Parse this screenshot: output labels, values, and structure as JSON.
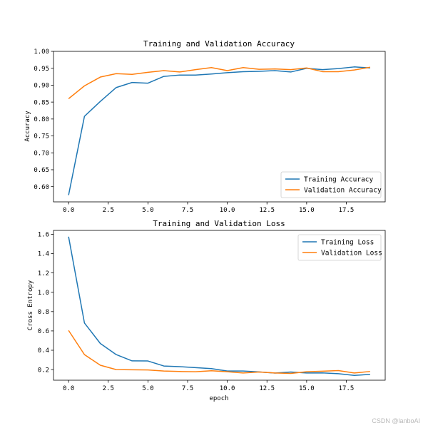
{
  "watermark": "CSDN @lanboAI",
  "colors": {
    "training": "#1f77b4",
    "validation": "#ff7f0e"
  },
  "chart_data": [
    {
      "type": "line",
      "title": "Training and Validation Accuracy",
      "xlabel": "",
      "ylabel": "Accuracy",
      "x": [
        0,
        1,
        2,
        3,
        4,
        5,
        6,
        7,
        8,
        9,
        10,
        11,
        12,
        13,
        14,
        15,
        16,
        17,
        18,
        19
      ],
      "xlim": [
        -0.95,
        19.95
      ],
      "ylim": [
        0.555,
        1.0
      ],
      "xticks": [
        0.0,
        2.5,
        5.0,
        7.5,
        10.0,
        12.5,
        15.0,
        17.5
      ],
      "xtick_labels": [
        "0.0",
        "2.5",
        "5.0",
        "7.5",
        "10.0",
        "12.5",
        "15.0",
        "17.5"
      ],
      "yticks": [
        0.6,
        0.65,
        0.7,
        0.75,
        0.8,
        0.85,
        0.9,
        0.95,
        1.0
      ],
      "ytick_labels": [
        "0.60",
        "0.65",
        "0.70",
        "0.75",
        "0.80",
        "0.85",
        "0.90",
        "0.95",
        "1.00"
      ],
      "legend_position": "lower-right",
      "series": [
        {
          "name": "Training Accuracy",
          "color": "#1f77b4",
          "values": [
            0.575,
            0.808,
            0.852,
            0.893,
            0.908,
            0.906,
            0.926,
            0.93,
            0.93,
            0.933,
            0.937,
            0.94,
            0.941,
            0.943,
            0.939,
            0.95,
            0.946,
            0.949,
            0.954,
            0.951
          ]
        },
        {
          "name": "Validation Accuracy",
          "color": "#ff7f0e",
          "values": [
            0.86,
            0.898,
            0.924,
            0.934,
            0.932,
            0.938,
            0.943,
            0.939,
            0.946,
            0.952,
            0.943,
            0.952,
            0.947,
            0.948,
            0.946,
            0.951,
            0.94,
            0.94,
            0.945,
            0.953
          ]
        }
      ]
    },
    {
      "type": "line",
      "title": "Training and Validation Loss",
      "xlabel": "epoch",
      "ylabel": "Cross Entropy",
      "x": [
        0,
        1,
        2,
        3,
        4,
        5,
        6,
        7,
        8,
        9,
        10,
        11,
        12,
        13,
        14,
        15,
        16,
        17,
        18,
        19
      ],
      "xlim": [
        -0.95,
        19.95
      ],
      "ylim": [
        0.09,
        1.64
      ],
      "xticks": [
        0.0,
        2.5,
        5.0,
        7.5,
        10.0,
        12.5,
        15.0,
        17.5
      ],
      "xtick_labels": [
        "0.0",
        "2.5",
        "5.0",
        "7.5",
        "10.0",
        "12.5",
        "15.0",
        "17.5"
      ],
      "yticks": [
        0.2,
        0.4,
        0.6,
        0.8,
        1.0,
        1.2,
        1.4,
        1.6
      ],
      "ytick_labels": [
        "0.2",
        "0.4",
        "0.6",
        "0.8",
        "1.0",
        "1.2",
        "1.4",
        "1.6"
      ],
      "legend_position": "upper-right",
      "series": [
        {
          "name": "Training Loss",
          "color": "#1f77b4",
          "values": [
            1.575,
            0.682,
            0.47,
            0.355,
            0.29,
            0.289,
            0.237,
            0.23,
            0.22,
            0.21,
            0.185,
            0.185,
            0.176,
            0.164,
            0.175,
            0.165,
            0.166,
            0.157,
            0.14,
            0.15
          ]
        },
        {
          "name": "Validation Loss",
          "color": "#ff7f0e",
          "values": [
            0.605,
            0.355,
            0.245,
            0.2,
            0.198,
            0.196,
            0.185,
            0.18,
            0.178,
            0.188,
            0.178,
            0.165,
            0.175,
            0.165,
            0.16,
            0.178,
            0.183,
            0.19,
            0.165,
            0.18
          ]
        }
      ]
    }
  ]
}
